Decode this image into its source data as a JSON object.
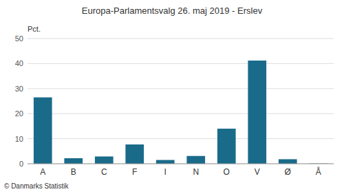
{
  "chart_data": {
    "type": "bar",
    "title": "Europa-Parlamentsvalg 26. maj 2019 - Erslev",
    "ylabel": "Pct.",
    "categories": [
      "A",
      "B",
      "C",
      "F",
      "I",
      "N",
      "O",
      "V",
      "Ø",
      "Å"
    ],
    "values": [
      26.5,
      2.2,
      2.9,
      7.7,
      1.5,
      3.1,
      14.0,
      41.2,
      1.8,
      0.1
    ],
    "color": "#1a6b8a",
    "ylim": [
      0,
      50
    ],
    "yticks": [
      0,
      10,
      20,
      30,
      40,
      50
    ],
    "grid": true,
    "annotations": [
      "© Danmarks Statistik"
    ]
  }
}
